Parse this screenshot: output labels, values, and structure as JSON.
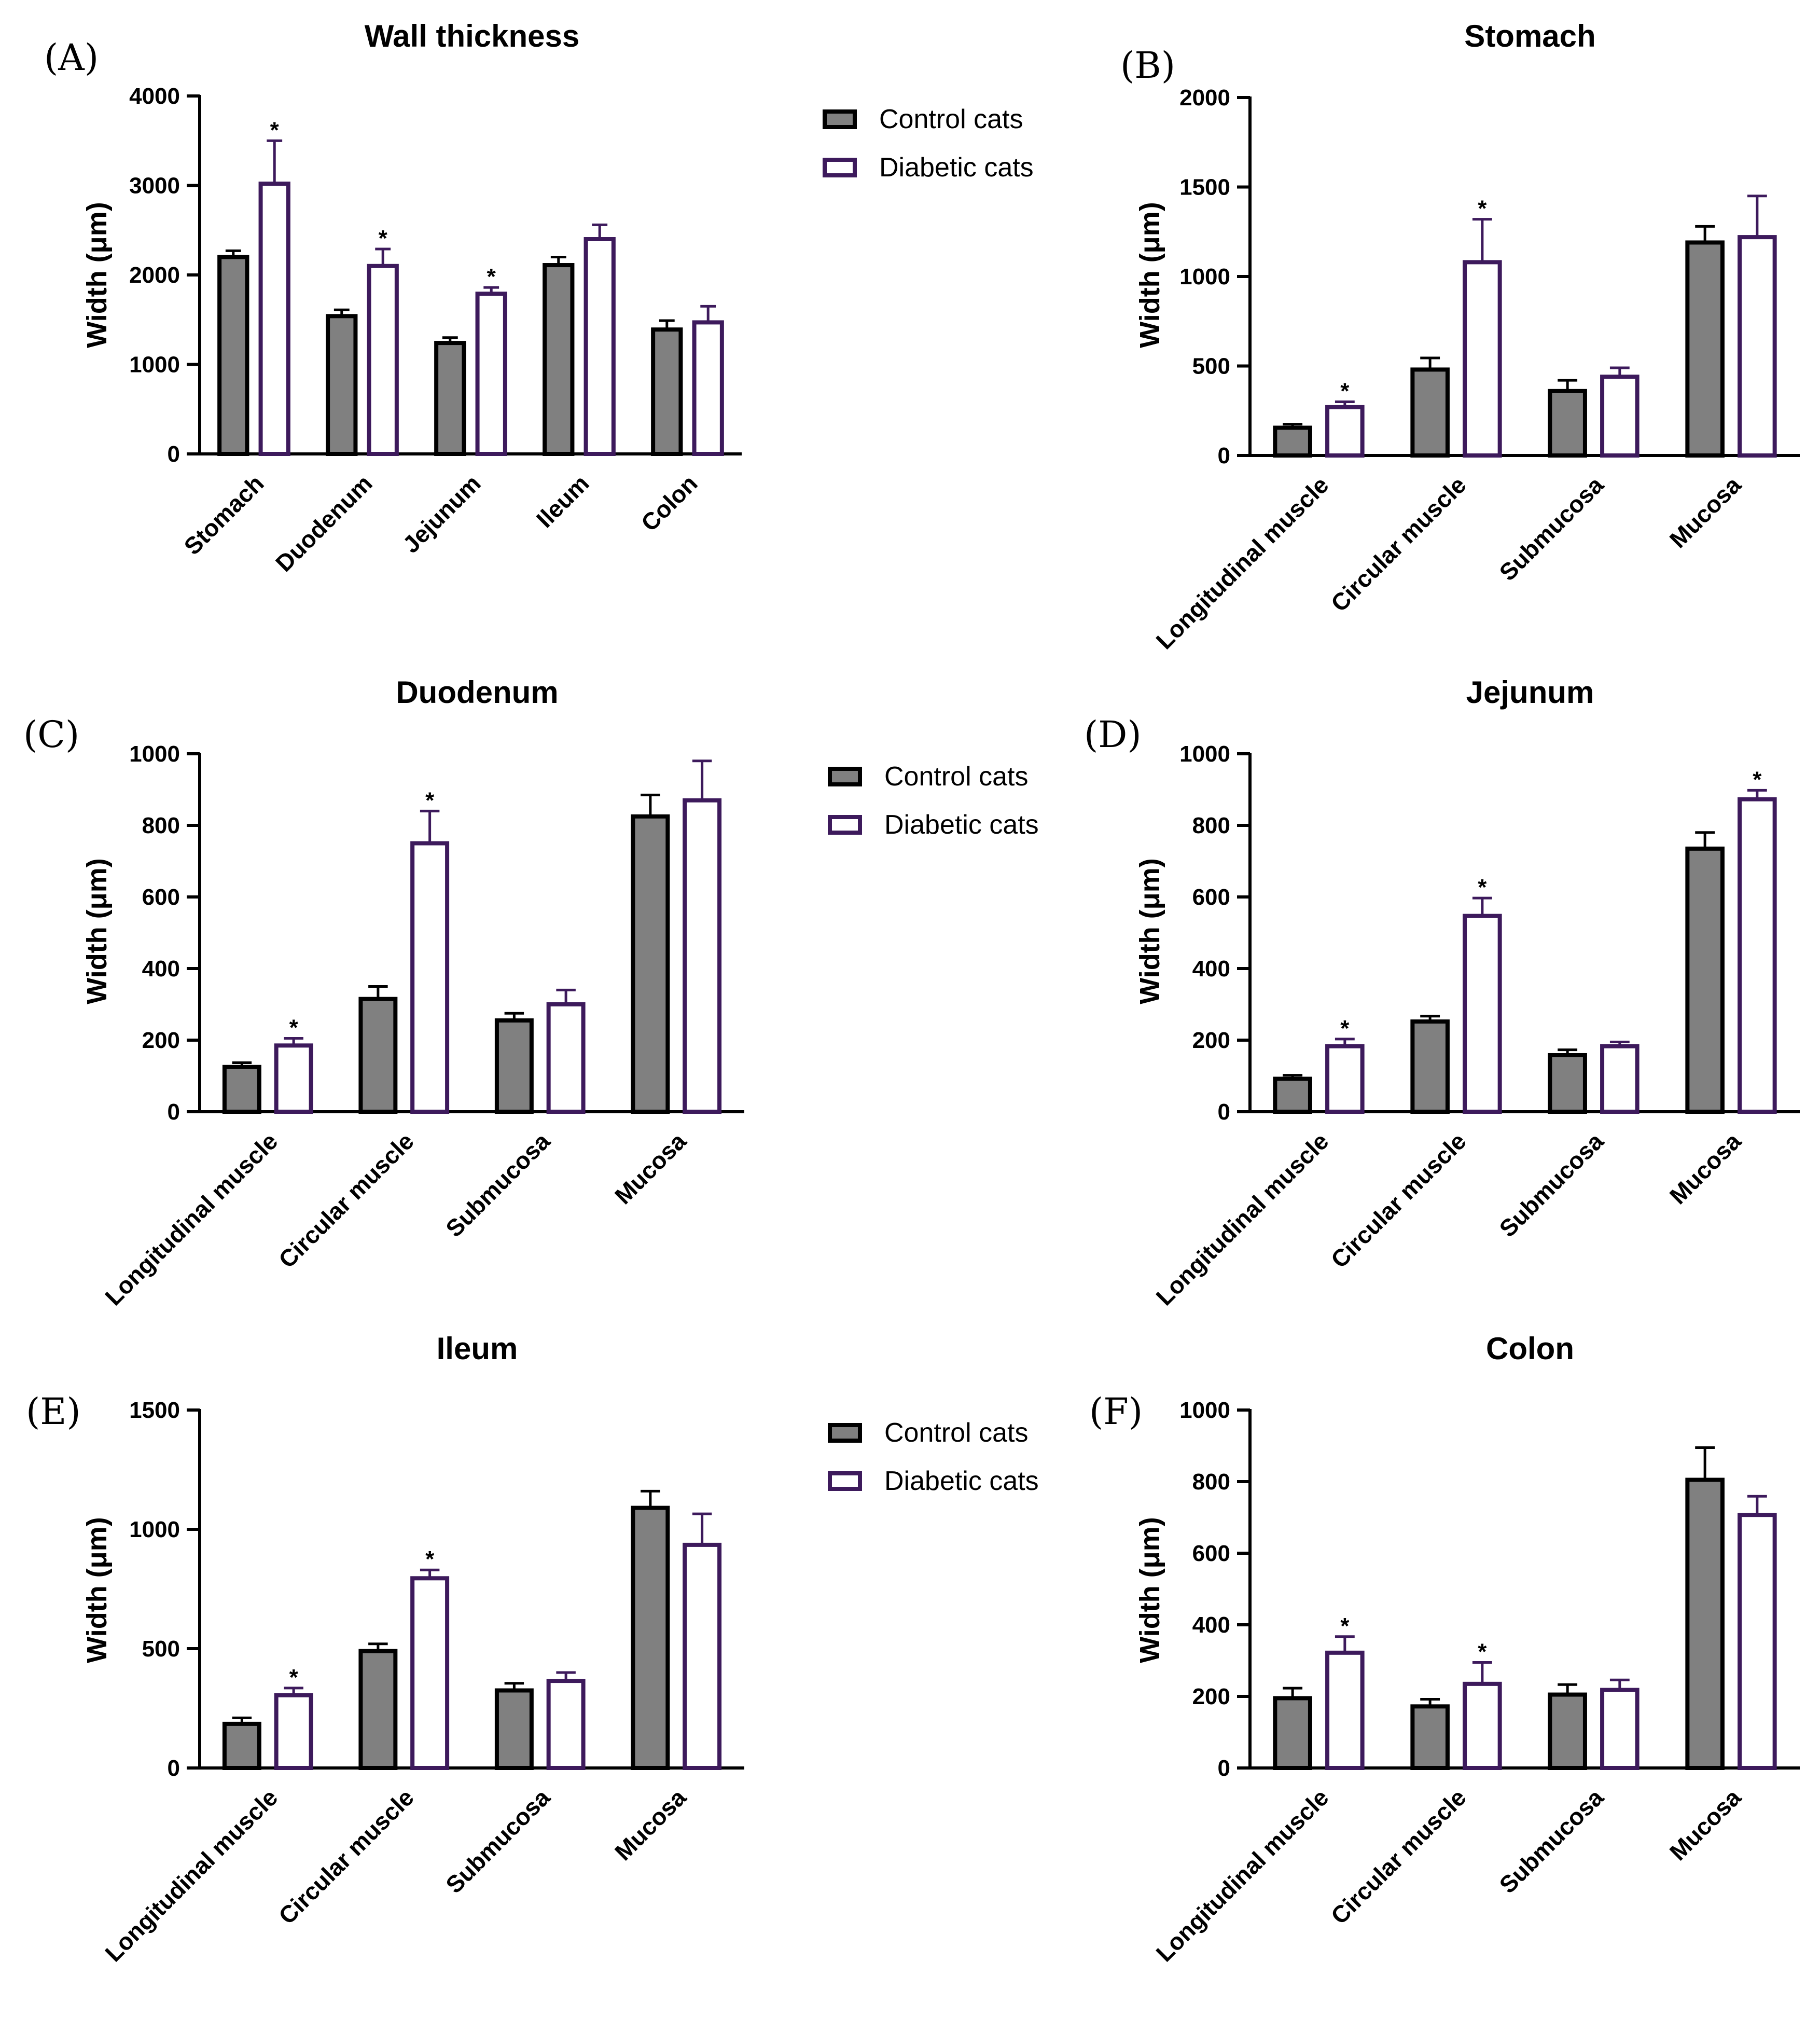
{
  "colors": {
    "control": "#808080",
    "diabetic": "#ffffff",
    "diabetic_stroke": "#3d1a5c",
    "axis": "#000000"
  },
  "legend": {
    "control": "Control cats",
    "diabetic": "Diabetic cats"
  },
  "chart_data": [
    {
      "panel": "(A)",
      "type": "bar",
      "title": "Wall thickness",
      "ylabel": "Width (μm)",
      "ylim": [
        0,
        4000
      ],
      "yticks": [
        0,
        1000,
        2000,
        3000,
        4000
      ],
      "categories": [
        "Stomach",
        "Duodenum",
        "Jejunum",
        "Ileum",
        "Colon"
      ],
      "series": [
        {
          "name": "Control cats",
          "values": [
            2200,
            1540,
            1240,
            2110,
            1390
          ],
          "errors": [
            70,
            70,
            60,
            90,
            100
          ]
        },
        {
          "name": "Diabetic cats",
          "values": [
            3020,
            2100,
            1790,
            2400,
            1470
          ],
          "errors": [
            480,
            190,
            70,
            160,
            180
          ]
        }
      ],
      "significant": [
        false,
        false,
        false,
        false,
        false,
        true,
        true,
        true,
        false,
        false
      ],
      "legend_shown": true
    },
    {
      "panel": "(B)",
      "type": "bar",
      "title": "Stomach",
      "ylabel": "Width (μm)",
      "ylim": [
        0,
        2000
      ],
      "yticks": [
        0,
        500,
        1000,
        1500,
        2000
      ],
      "categories": [
        "Longitudinal muscle",
        "Circular muscle",
        "Submucosa",
        "Mucosa"
      ],
      "series": [
        {
          "name": "Control cats",
          "values": [
            155,
            480,
            360,
            1190
          ],
          "errors": [
            20,
            65,
            60,
            90
          ]
        },
        {
          "name": "Diabetic cats",
          "values": [
            270,
            1080,
            440,
            1220
          ],
          "errors": [
            30,
            240,
            50,
            230
          ]
        }
      ],
      "significant": [
        false,
        false,
        false,
        false,
        true,
        true,
        false,
        false
      ],
      "legend_shown": false
    },
    {
      "panel": "(C)",
      "type": "bar",
      "title": "Duodenum",
      "ylabel": "Width (μm)",
      "ylim": [
        0,
        1000
      ],
      "yticks": [
        0,
        200,
        400,
        600,
        800,
        1000
      ],
      "categories": [
        "Longitudinal muscle",
        "Circular muscle",
        "Submucosa",
        "Mucosa"
      ],
      "series": [
        {
          "name": "Control cats",
          "values": [
            125,
            315,
            255,
            825
          ],
          "errors": [
            12,
            35,
            20,
            60
          ]
        },
        {
          "name": "Diabetic cats",
          "values": [
            185,
            750,
            300,
            870
          ],
          "errors": [
            20,
            90,
            40,
            110
          ]
        }
      ],
      "significant": [
        false,
        false,
        false,
        false,
        true,
        true,
        false,
        false
      ],
      "legend_shown": true
    },
    {
      "panel": "(D)",
      "type": "bar",
      "title": "Jejunum",
      "ylabel": "Width (μm)",
      "ylim": [
        0,
        1000
      ],
      "yticks": [
        0,
        200,
        400,
        600,
        800,
        1000
      ],
      "categories": [
        "Longitudinal muscle",
        "Circular muscle",
        "Submucosa",
        "Mucosa"
      ],
      "series": [
        {
          "name": "Control cats",
          "values": [
            92,
            252,
            158,
            735
          ],
          "errors": [
            10,
            15,
            15,
            45
          ]
        },
        {
          "name": "Diabetic cats",
          "values": [
            183,
            547,
            183,
            873
          ],
          "errors": [
            20,
            50,
            12,
            25
          ]
        }
      ],
      "significant": [
        false,
        false,
        false,
        false,
        true,
        true,
        false,
        true
      ],
      "legend_shown": false
    },
    {
      "panel": "(E)",
      "type": "bar",
      "title": "Ileum",
      "ylabel": "Width (μm)",
      "ylim": [
        0,
        1500
      ],
      "yticks": [
        0,
        500,
        1000,
        1500
      ],
      "categories": [
        "Longitudinal muscle",
        "Circular muscle",
        "Submucosa",
        "Mucosa"
      ],
      "series": [
        {
          "name": "Control cats",
          "values": [
            185,
            490,
            325,
            1090
          ],
          "errors": [
            25,
            30,
            30,
            70
          ]
        },
        {
          "name": "Diabetic cats",
          "values": [
            305,
            795,
            365,
            935
          ],
          "errors": [
            30,
            35,
            35,
            130
          ]
        }
      ],
      "significant": [
        false,
        false,
        false,
        false,
        true,
        true,
        false,
        false
      ],
      "legend_shown": true
    },
    {
      "panel": "(F)",
      "type": "bar",
      "title": "Colon",
      "ylabel": "Width (μm)",
      "ylim": [
        0,
        1000
      ],
      "yticks": [
        0,
        200,
        400,
        600,
        800,
        1000
      ],
      "categories": [
        "Longitudinal muscle",
        "Circular muscle",
        "Submucosa",
        "Mucosa"
      ],
      "series": [
        {
          "name": "Control cats",
          "values": [
            195,
            172,
            205,
            805
          ],
          "errors": [
            28,
            20,
            28,
            90
          ]
        },
        {
          "name": "Diabetic cats",
          "values": [
            322,
            235,
            218,
            707
          ],
          "errors": [
            45,
            60,
            28,
            52
          ]
        }
      ],
      "significant": [
        false,
        false,
        false,
        false,
        true,
        true,
        false,
        false
      ],
      "legend_shown": false
    }
  ]
}
